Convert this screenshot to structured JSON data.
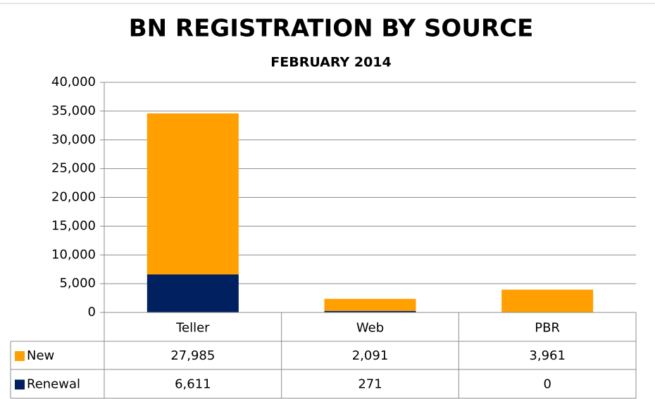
{
  "chart_data": {
    "type": "stacked_bar",
    "title": "BN REGISTRATION BY SOURCE",
    "subtitle": "FEBRUARY 2014",
    "categories": [
      "Teller",
      "Web",
      "PBR"
    ],
    "series": [
      {
        "name": "New",
        "color": "#ff9f00",
        "values": [
          27985,
          2091,
          3961
        ],
        "value_labels": [
          "27,985",
          "2,091",
          "3,961"
        ]
      },
      {
        "name": "Renewal",
        "color": "#002060",
        "values": [
          6611,
          271,
          0
        ],
        "value_labels": [
          "6,611",
          "271",
          "0"
        ]
      }
    ],
    "ylim": [
      0,
      40000
    ],
    "yticks": [
      0,
      {
        "value": 5000,
        "label": "5,000"
      },
      {
        "value": 10000,
        "label": "10,000"
      },
      {
        "value": 15000,
        "label": "15,000"
      },
      {
        "value": 20000,
        "label": "20,000"
      },
      {
        "value": 25000,
        "label": "25,000"
      },
      {
        "value": 30000,
        "label": "30,000"
      },
      {
        "value": 35000,
        "label": "35,000"
      },
      {
        "value": 40000,
        "label": "40,000"
      }
    ],
    "grid": true,
    "legend": "table"
  }
}
